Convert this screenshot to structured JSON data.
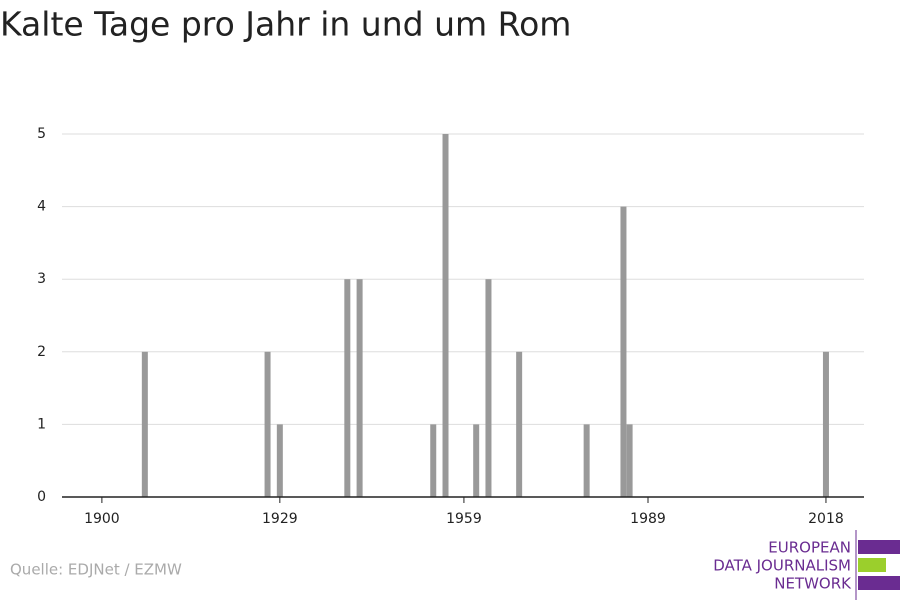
{
  "chart_data": {
    "type": "bar",
    "title": "Kalte Tage pro Jahr in und um Rom",
    "x": [
      1907,
      1927,
      1929,
      1940,
      1942,
      1954,
      1956,
      1961,
      1963,
      1968,
      1979,
      1985,
      1986,
      2018
    ],
    "values": [
      2,
      2,
      1,
      3,
      3,
      1,
      5,
      1,
      3,
      2,
      1,
      4,
      1,
      2
    ],
    "color": "#999999",
    "xlim": [
      1893.5,
      2024.2
    ],
    "xticks": [
      1900,
      1929,
      1959,
      1989,
      2018
    ],
    "ylim": [
      0,
      5
    ],
    "yticks": [
      0,
      1,
      2,
      3,
      4,
      5
    ],
    "grid": true,
    "source": "Quelle: EDJNet / EZMW"
  },
  "logo": {
    "lines": [
      "EUROPEAN",
      "DATA JOURNALISM",
      "NETWORK"
    ]
  }
}
